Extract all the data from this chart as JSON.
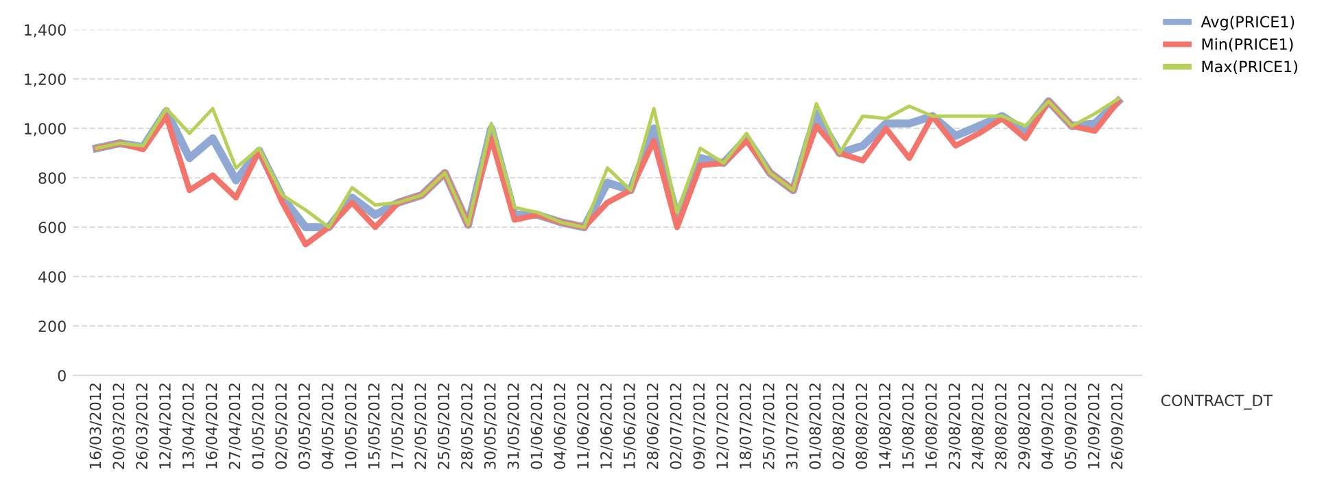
{
  "chart_data": {
    "type": "line",
    "xlabel": "CONTRACT_DT",
    "categories": [
      "16/03/2012",
      "20/03/2012",
      "26/03/2012",
      "12/04/2012",
      "13/04/2012",
      "16/04/2012",
      "27/04/2012",
      "01/05/2012",
      "02/05/2012",
      "03/05/2012",
      "04/05/2012",
      "10/05/2012",
      "15/05/2012",
      "17/05/2012",
      "22/05/2012",
      "25/05/2012",
      "28/05/2012",
      "30/05/2012",
      "31/05/2012",
      "01/06/2012",
      "04/06/2012",
      "11/06/2012",
      "12/06/2012",
      "15/06/2012",
      "28/06/2012",
      "02/07/2012",
      "09/07/2012",
      "12/07/2012",
      "18/07/2012",
      "25/07/2012",
      "31/07/2012",
      "01/08/2012",
      "02/08/2012",
      "08/08/2012",
      "14/08/2012",
      "15/08/2012",
      "16/08/2012",
      "23/08/2012",
      "24/08/2012",
      "28/08/2012",
      "29/08/2012",
      "04/09/2012",
      "05/09/2012",
      "12/09/2012",
      "26/09/2012"
    ],
    "series": [
      {
        "name": "Avg(PRICE1)",
        "color": "#8fa8d4",
        "values": [
          920,
          940,
          925,
          1070,
          880,
          960,
          790,
          910,
          720,
          600,
          600,
          720,
          650,
          700,
          730,
          820,
          610,
          1000,
          650,
          650,
          620,
          600,
          780,
          750,
          1000,
          640,
          880,
          860,
          960,
          820,
          750,
          1060,
          900,
          930,
          1020,
          1020,
          1050,
          970,
          1010,
          1050,
          990,
          1110,
          1010,
          1020,
          1110
        ]
      },
      {
        "name": "Min(PRICE1)",
        "color": "#f2746a",
        "values": [
          920,
          940,
          915,
          1050,
          750,
          810,
          720,
          910,
          700,
          530,
          600,
          700,
          600,
          700,
          730,
          820,
          610,
          960,
          630,
          650,
          620,
          600,
          700,
          750,
          950,
          600,
          850,
          860,
          950,
          820,
          750,
          1010,
          900,
          870,
          1000,
          880,
          1050,
          930,
          980,
          1040,
          960,
          1110,
          1010,
          990,
          1110
        ]
      },
      {
        "name": "Max(PRICE1)",
        "color": "#b5d15a",
        "values": [
          920,
          940,
          930,
          1080,
          980,
          1080,
          840,
          920,
          730,
          670,
          600,
          760,
          690,
          700,
          730,
          820,
          610,
          1020,
          680,
          660,
          620,
          600,
          840,
          750,
          1080,
          660,
          920,
          860,
          980,
          820,
          750,
          1100,
          900,
          1050,
          1040,
          1090,
          1050,
          1050,
          1050,
          1050,
          1010,
          1110,
          1010,
          1060,
          1120
        ]
      }
    ],
    "ylim": [
      0,
      1400
    ],
    "yticks": [
      {
        "value": 0,
        "label": "0"
      },
      {
        "value": 200,
        "label": "200"
      },
      {
        "value": 400,
        "label": "400"
      },
      {
        "value": 600,
        "label": "600"
      },
      {
        "value": 800,
        "label": "800"
      },
      {
        "value": 1000,
        "label": "1,000"
      },
      {
        "value": 1200,
        "label": "1,200"
      },
      {
        "value": 1400,
        "label": "1,400"
      }
    ],
    "grid": "y",
    "legend": "top right",
    "marker": "none",
    "line_style": "solid"
  }
}
